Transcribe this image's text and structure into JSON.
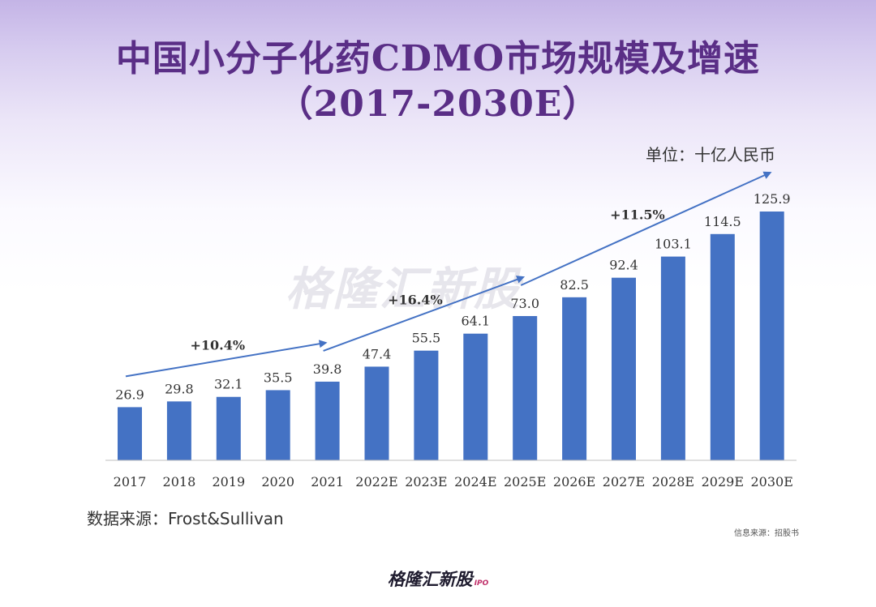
{
  "title_line1": "中国小分子化药CDMO市场规模及增速",
  "title_line2": "（2017-2030E）",
  "unit_label": "单位：十亿人民币",
  "source": "数据来源：Frost&Sullivan",
  "info_source": "信息来源：招股书",
  "watermark": "格隆汇新股",
  "brand": {
    "name": "格隆汇新股",
    "sub": "IPO"
  },
  "colors": {
    "bar": "#4472c4",
    "arrow": "#4472c4",
    "title": "#5a2e86"
  },
  "chart_data": {
    "type": "bar",
    "title": "中国小分子化药CDMO市场规模及增速（2017-2030E）",
    "ylabel": "单位：十亿人民币",
    "categories": [
      "2017",
      "2018",
      "2019",
      "2020",
      "2021",
      "2022E",
      "2023E",
      "2024E",
      "2025E",
      "2026E",
      "2027E",
      "2028E",
      "2029E",
      "2030E"
    ],
    "values": [
      26.9,
      29.8,
      32.1,
      35.5,
      39.8,
      47.4,
      55.5,
      64.1,
      73.0,
      82.5,
      92.4,
      103.1,
      114.5,
      125.9
    ],
    "ylim": [
      0,
      125.9
    ],
    "grid": false,
    "growth_annotations": [
      {
        "label": "+10.4%",
        "from": "2017",
        "to": "2021"
      },
      {
        "label": "+16.4%",
        "from": "2021",
        "to": "2025E"
      },
      {
        "label": "+11.5%",
        "from": "2025E",
        "to": "2030E"
      }
    ]
  }
}
